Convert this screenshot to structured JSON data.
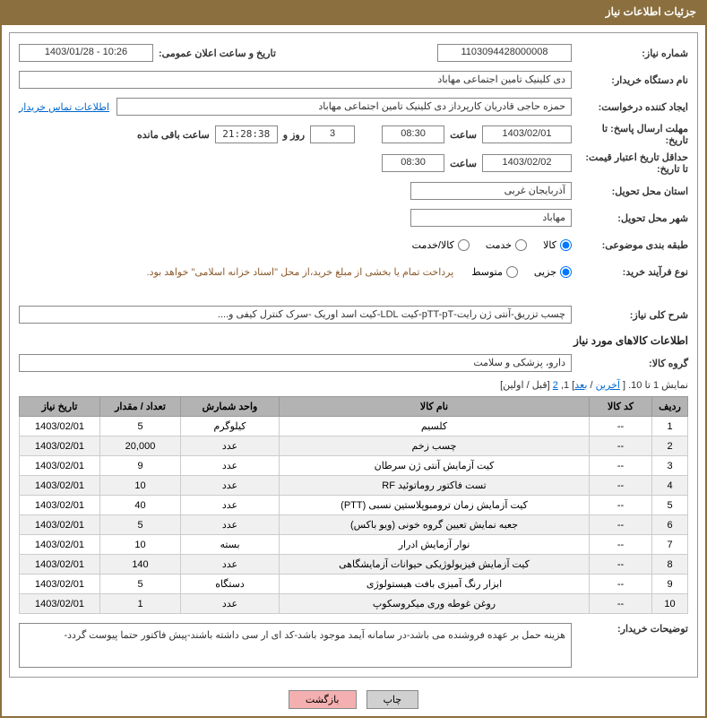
{
  "header": {
    "title": "جزئیات اطلاعات نیاز"
  },
  "form": {
    "need_no_label": "شماره نیاز:",
    "need_no": "1103094428000008",
    "announce_label": "تاریخ و ساعت اعلان عمومی:",
    "announce_value": "1403/01/28 - 10:26",
    "buyer_org_label": "نام دستگاه خریدار:",
    "buyer_org": "دی کلینیک تامین اجتماعی مهاباد",
    "requester_label": "ایجاد کننده درخواست:",
    "requester": "حمزه حاجی قادریان کارپرداز دی کلینیک تامین اجتماعی مهاباد",
    "contact_link": "اطلاعات تماس خریدار",
    "deadline_label": "مهلت ارسال پاسخ: تا تاریخ:",
    "deadline_date": "1403/02/01",
    "time_label": "ساعت",
    "deadline_time": "08:30",
    "days_count": "3",
    "days_and": "روز و",
    "countdown": "21:28:38",
    "remaining": "ساعت باقی مانده",
    "validity_label": "حداقل تاریخ اعتبار قیمت: تا تاریخ:",
    "validity_date": "1403/02/02",
    "validity_time": "08:30",
    "province_label": "استان محل تحویل:",
    "province": "آذربایجان غربی",
    "city_label": "شهر محل تحویل:",
    "city": "مهاباد",
    "category_label": "طبقه بندی موضوعی:",
    "cat_goods": "کالا",
    "cat_service": "خدمت",
    "cat_both": "کالا/خدمت",
    "process_label": "نوع فرآیند خرید:",
    "proc_minor": "جزیی",
    "proc_medium": "متوسط",
    "payment_note": "پرداخت تمام یا بخشی از مبلغ خرید،از محل \"اسناد خزانه اسلامی\" خواهد بود.",
    "overall_label": "شرح کلی نیاز:",
    "overall_desc": "چسب تزریق-آنتی ژن رایت-pTT-pT-کیت LDL-کیت اسد اوریک -سرک کنترل کیفی و....",
    "goods_section": "اطلاعات کالاهای مورد نیاز",
    "group_label": "گروه کالا:",
    "group_value": "دارو، پزشکی و سلامت",
    "nav_text": "نمایش 1 تا 10. [ آخرین / بعد] 1, 2 [قبل / اولین]",
    "nav_showing": "نمایش 1 تا 10. [ ",
    "nav_last": "آخرین",
    "nav_sep1": " / ",
    "nav_next": "بعد",
    "nav_mid": "] 1, ",
    "nav_p2": "2",
    "nav_end": " [قبل / اولین]",
    "buyer_desc_label": "توضیحات خریدار:",
    "buyer_desc": "هزینه حمل بر عهده فروشنده می باشد-در سامانه آیمد موجود باشد-کد ای ار سی داشته باشند-پیش فاکتور حتما پیوست گردد-",
    "btn_print": "چاپ",
    "btn_back": "بازگشت"
  },
  "table": {
    "headers": {
      "row": "ردیف",
      "code": "کد کالا",
      "name": "نام کالا",
      "unit": "واحد شمارش",
      "qty": "تعداد / مقدار",
      "date": "تاریخ نیاز"
    },
    "rows": [
      {
        "n": "1",
        "code": "--",
        "name": "کلسیم",
        "unit": "کیلوگرم",
        "qty": "5",
        "date": "1403/02/01"
      },
      {
        "n": "2",
        "code": "--",
        "name": "چسب زخم",
        "unit": "عدد",
        "qty": "20,000",
        "date": "1403/02/01"
      },
      {
        "n": "3",
        "code": "--",
        "name": "کیت آزمایش آنتی ژن سرطان",
        "unit": "عدد",
        "qty": "9",
        "date": "1403/02/01"
      },
      {
        "n": "4",
        "code": "--",
        "name": "تست فاکتور روماتوئید RF",
        "unit": "عدد",
        "qty": "10",
        "date": "1403/02/01"
      },
      {
        "n": "5",
        "code": "--",
        "name": "کیت آزمایش زمان ترومبوپلاستین نسبی (PTT)",
        "unit": "عدد",
        "qty": "40",
        "date": "1403/02/01"
      },
      {
        "n": "6",
        "code": "--",
        "name": "جعبه نمایش تعیین گروه خونی (ویو باکس)",
        "unit": "عدد",
        "qty": "5",
        "date": "1403/02/01"
      },
      {
        "n": "7",
        "code": "--",
        "name": "نوار آزمایش ادرار",
        "unit": "بسته",
        "qty": "10",
        "date": "1403/02/01"
      },
      {
        "n": "8",
        "code": "--",
        "name": "کیت آزمایش فیزیولوژیکی حیوانات آزمایشگاهی",
        "unit": "عدد",
        "qty": "140",
        "date": "1403/02/01"
      },
      {
        "n": "9",
        "code": "--",
        "name": "ابزار رنگ آمیزی بافت هیستولوژی",
        "unit": "دستگاه",
        "qty": "5",
        "date": "1403/02/01"
      },
      {
        "n": "10",
        "code": "--",
        "name": "روغن غوطه وری میکروسکوپ",
        "unit": "عدد",
        "qty": "1",
        "date": "1403/02/01"
      }
    ]
  }
}
